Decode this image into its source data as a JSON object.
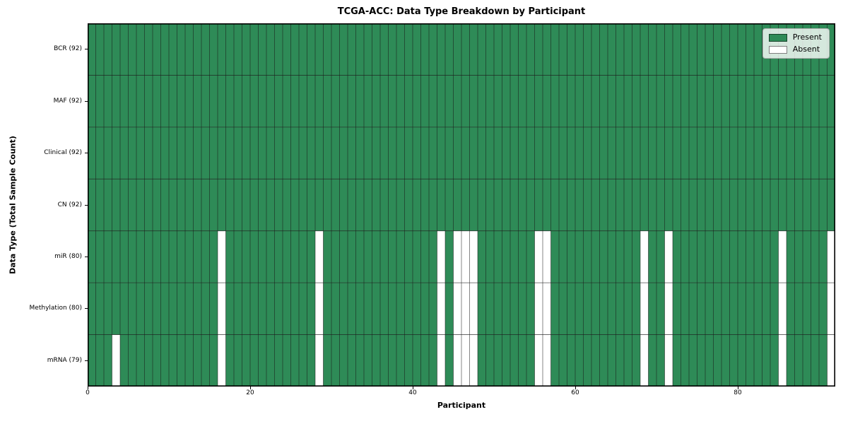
{
  "chart_data": {
    "type": "heatmap",
    "title": "TCGA-ACC: Data Type Breakdown by Participant",
    "xlabel": "Participant",
    "ylabel": "Data Type (Total Sample Count)",
    "n_participants": 92,
    "x_ticks": [
      0,
      20,
      40,
      60,
      80
    ],
    "rows": [
      {
        "label": "BCR (92)",
        "present_count": 92,
        "absent_participants": []
      },
      {
        "label": "MAF (92)",
        "present_count": 92,
        "absent_participants": []
      },
      {
        "label": "Clinical (92)",
        "present_count": 92,
        "absent_participants": []
      },
      {
        "label": "CN (92)",
        "present_count": 92,
        "absent_participants": []
      },
      {
        "label": "miR (80)",
        "present_count": 80,
        "absent_participants": [
          16,
          28,
          43,
          45,
          46,
          47,
          55,
          56,
          68,
          71,
          85,
          91
        ]
      },
      {
        "label": "Methylation (80)",
        "present_count": 80,
        "absent_participants": [
          16,
          28,
          43,
          45,
          46,
          47,
          55,
          56,
          68,
          71,
          85,
          91
        ]
      },
      {
        "label": "mRNA (79)",
        "present_count": 79,
        "absent_participants": [
          3,
          16,
          28,
          43,
          45,
          46,
          47,
          55,
          56,
          68,
          71,
          85,
          91
        ]
      }
    ],
    "legend": [
      {
        "label": "Present",
        "color": "#2e8b57"
      },
      {
        "label": "Absent",
        "color": "#ffffff"
      }
    ],
    "colors": {
      "present": "#2e8b57",
      "absent": "#ffffff",
      "grid": "#1a1a1a",
      "border": "#000000"
    },
    "legend_position": "upper right",
    "grid": true
  }
}
